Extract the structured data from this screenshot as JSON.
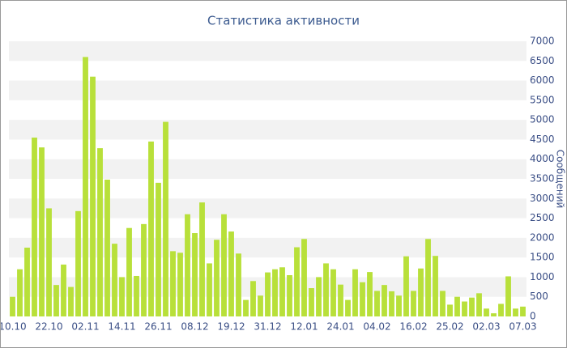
{
  "chart_data": {
    "type": "bar",
    "title": "Статистика активности",
    "y_label": "Сообщений",
    "color": "#b8e03a",
    "categories": [
      "10.10",
      null,
      null,
      null,
      null,
      "22.10",
      null,
      null,
      null,
      null,
      "02.11",
      null,
      null,
      null,
      null,
      "14.11",
      null,
      null,
      null,
      null,
      "26.11",
      null,
      null,
      null,
      null,
      "08.12",
      null,
      null,
      null,
      null,
      "19.12",
      null,
      null,
      null,
      null,
      "31.12",
      null,
      null,
      null,
      null,
      "12.01",
      null,
      null,
      null,
      null,
      "24.01",
      null,
      null,
      null,
      null,
      "04.02",
      null,
      null,
      null,
      null,
      "16.02",
      null,
      null,
      null,
      null,
      "25.02",
      null,
      null,
      null,
      null,
      "02.03",
      null,
      null,
      null,
      null,
      "07.03"
    ],
    "values": [
      500,
      1200,
      1750,
      4550,
      4300,
      2750,
      800,
      1320,
      750,
      2680,
      6600,
      6100,
      4280,
      3480,
      1850,
      1000,
      2250,
      1030,
      2350,
      4450,
      3400,
      4950,
      1660,
      1620,
      2600,
      2120,
      2900,
      1350,
      1950,
      2600,
      2160,
      1600,
      420,
      900,
      530,
      1120,
      1200,
      1250,
      1050,
      1760,
      1970,
      720,
      1000,
      1350,
      1200,
      810,
      420,
      1200,
      870,
      1130,
      650,
      800,
      640,
      530,
      1530,
      650,
      1220,
      1970,
      1540,
      650,
      300,
      500,
      380,
      480,
      590,
      200,
      80,
      320,
      1020,
      200,
      250
    ],
    "ylim": [
      0,
      7000
    ],
    "yticks": [
      0,
      500,
      1000,
      1500,
      2000,
      2500,
      3000,
      3500,
      4000,
      4500,
      5000,
      5500,
      6000,
      6500,
      7000
    ],
    "grid": "bands",
    "grid_color": "#f2f2f2"
  }
}
